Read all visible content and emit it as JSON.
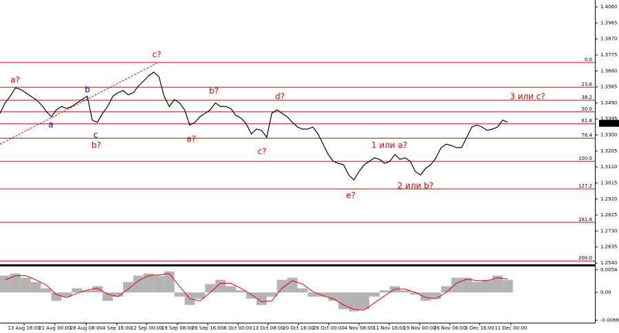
{
  "chart_data": [
    {
      "type": "line",
      "color": "#000000",
      "x": [
        0,
        1,
        2,
        3,
        4,
        5,
        6,
        7,
        8,
        9,
        10,
        11,
        12,
        13,
        14,
        15,
        16,
        17,
        18,
        19,
        20,
        21,
        22,
        23,
        24,
        25,
        26,
        27,
        28,
        29,
        30,
        31,
        32,
        33,
        34,
        35,
        36,
        37,
        38,
        39,
        40,
        41,
        42,
        43,
        44,
        45,
        46,
        47,
        48,
        49,
        50,
        51,
        52,
        53,
        54,
        55,
        56,
        57,
        58,
        59,
        60,
        61,
        62,
        63,
        64,
        65,
        66,
        67,
        68,
        69,
        70,
        71,
        72,
        73,
        74,
        75,
        76,
        77,
        78,
        79,
        80,
        81,
        82,
        83,
        84,
        85,
        86,
        87,
        88,
        89,
        90,
        91,
        92,
        93,
        94,
        95,
        96,
        97,
        98,
        99
      ],
      "values": [
        1.3428,
        1.349,
        1.353,
        1.3579,
        1.3571,
        1.3551,
        1.353,
        1.351,
        1.3481,
        1.3441,
        1.3408,
        1.3449,
        1.3469,
        1.3457,
        1.3469,
        1.349,
        1.351,
        1.353,
        1.3388,
        1.3375,
        1.3428,
        1.3469,
        1.353,
        1.3551,
        1.3563,
        1.3538,
        1.3551,
        1.3591,
        1.362,
        1.3652,
        1.3673,
        1.3644,
        1.353,
        1.3469,
        1.351,
        1.349,
        1.3449,
        1.3359,
        1.3375,
        1.3408,
        1.3428,
        1.3449,
        1.349,
        1.3469,
        1.3469,
        1.3457,
        1.3416,
        1.34,
        1.3367,
        1.3306,
        1.3335,
        1.3327,
        1.3286,
        1.3428,
        1.3449,
        1.3428,
        1.3408,
        1.3375,
        1.3347,
        1.3335,
        1.3335,
        1.3347,
        1.3306,
        1.3245,
        1.3184,
        1.3143,
        1.3131,
        1.3123,
        1.3062,
        1.3033,
        1.3082,
        1.3123,
        1.3143,
        1.3164,
        1.3155,
        1.3131,
        1.3143,
        1.3184,
        1.3155,
        1.3164,
        1.3143,
        1.3082,
        1.3062,
        1.3102,
        1.3123,
        1.3164,
        1.3225,
        1.3245,
        1.3237,
        1.3225,
        1.3225,
        1.3286,
        1.3347,
        1.3359,
        1.3347,
        1.3327,
        1.3335,
        1.3347,
        1.3388,
        1.3375
      ],
      "xlim": [
        0,
        116
      ],
      "xticks": [
        {
          "value": 4.7,
          "label": "13 Aug 16:00"
        },
        {
          "value": 10.7,
          "label": "21 Aug 00:00"
        },
        {
          "value": 16.8,
          "label": "28 Aug 08:00"
        },
        {
          "value": 22.8,
          "label": "4 Sep 16:00"
        },
        {
          "value": 28.6,
          "label": "12 Sep 00:00"
        },
        {
          "value": 34.6,
          "label": "19 Sep 08:00"
        },
        {
          "value": 40.5,
          "label": "26 Sep 16:00"
        },
        {
          "value": 46.4,
          "label": "6 Oct 00:00"
        },
        {
          "value": 52.3,
          "label": "13 Oct 08:00"
        },
        {
          "value": 58.2,
          "label": "20 Oct 16:00"
        },
        {
          "value": 64.1,
          "label": "28 Oct 00:00"
        },
        {
          "value": 70.0,
          "label": "4 Nov 08:00"
        },
        {
          "value": 75.9,
          "label": "11 Nov 16:00"
        },
        {
          "value": 81.8,
          "label": "19 Nov 00:00"
        },
        {
          "value": 87.7,
          "label": "26 Nov 08:00"
        },
        {
          "value": 93.5,
          "label": "3 Dec 16:00"
        },
        {
          "value": 99.6,
          "label": "11 Dec 00:00"
        }
      ],
      "ylim": [
        1.2532,
        1.4101
      ],
      "yticks": [
        {
          "value": 1.406,
          "label": "1.4060"
        },
        {
          "value": 1.3965,
          "label": "1.3965"
        },
        {
          "value": 1.387,
          "label": "1.3870"
        },
        {
          "value": 1.3775,
          "label": "1.3775"
        },
        {
          "value": 1.368,
          "label": "1.3680"
        },
        {
          "value": 1.3585,
          "label": "1.3585"
        },
        {
          "value": 1.349,
          "label": "1.3490"
        },
        {
          "value": 1.3395,
          "label": "1.3395"
        },
        {
          "value": 1.33,
          "label": "1.3300"
        },
        {
          "value": 1.3205,
          "label": "1.3205"
        },
        {
          "value": 1.311,
          "label": "1.3110"
        },
        {
          "value": 1.3015,
          "label": "1.3015"
        },
        {
          "value": 1.292,
          "label": "1.2920"
        },
        {
          "value": 1.2825,
          "label": "1.2825"
        },
        {
          "value": 1.273,
          "label": "1.2730"
        },
        {
          "value": 1.2635,
          "label": "1.2635"
        },
        {
          "value": 1.254,
          "label": "1.2540"
        }
      ],
      "current_price": {
        "value": 1.3369,
        "label": "1.3369"
      },
      "fib_color": "#c00000",
      "fib_levels": [
        {
          "level": "0.0",
          "price": 1.373
        },
        {
          "level": "23.6",
          "price": 1.3583
        },
        {
          "level": "38.2",
          "price": 1.3506
        },
        {
          "level": "50.0",
          "price": 1.3437
        },
        {
          "level": "61.8",
          "price": 1.3367
        },
        {
          "level": "76.4",
          "price": 1.3281
        },
        {
          "level": "100.0",
          "price": 1.3143
        },
        {
          "level": "127.2",
          "price": 1.298
        },
        {
          "level": "161.8",
          "price": 1.2781
        },
        {
          "level": "200.0",
          "price": 1.2552
        }
      ],
      "annotations": [
        {
          "text": "a?",
          "color": "#e00000"
        },
        {
          "text": "b?",
          "color": "#e00000"
        },
        {
          "text": "c?",
          "color": "#e00000"
        },
        {
          "text": "a?",
          "color": "#e00000"
        },
        {
          "text": "b?",
          "color": "#e00000"
        },
        {
          "text": "c?",
          "color": "#e00000"
        },
        {
          "text": "d?",
          "color": "#e00000"
        },
        {
          "text": "e?",
          "color": "#e00000"
        },
        {
          "text": "1 или a?",
          "color": "#e00000"
        },
        {
          "text": "2 или b?",
          "color": "#e00000"
        },
        {
          "text": "3 или c?",
          "color": "#e00000"
        },
        {
          "text": "b",
          "color": "#0000cc"
        },
        {
          "text": "a",
          "color": "#0000cc"
        },
        {
          "text": "c",
          "color": "#0000cc"
        }
      ]
    },
    {
      "type": "bar",
      "x": [
        0,
        2,
        4,
        6,
        8,
        10,
        12,
        14,
        16,
        18,
        20,
        22,
        24,
        26,
        28,
        30,
        32,
        34,
        36,
        38,
        40,
        42,
        44,
        46,
        48,
        50,
        52,
        54,
        56,
        58,
        60,
        62,
        64,
        66,
        68,
        70,
        72,
        74,
        76,
        78,
        80,
        82,
        84,
        86,
        88,
        90,
        92,
        94,
        96,
        98
      ],
      "histogram": {
        "color": "#b4b4b4",
        "values": [
          0.004,
          0.0045,
          0.0035,
          0.0025,
          0.001,
          -0.002,
          -0.001,
          0.001,
          0.0005,
          0.0015,
          -0.002,
          -0.001,
          0.0025,
          0.004,
          0.0045,
          0.004,
          0.005,
          -0.001,
          -0.003,
          -0.0015,
          0.002,
          0.003,
          0.0015,
          0.0005,
          -0.0015,
          -0.003,
          -0.001,
          0.003,
          0.0035,
          0.001,
          -0.001,
          -0.001,
          -0.002,
          -0.004,
          -0.0045,
          -0.004,
          -0.001,
          0.0005,
          0.0015,
          0.0005,
          -0.0005,
          -0.002,
          -0.0015,
          0.0015,
          0.0035,
          0.0035,
          0.0025,
          0.003,
          0.004,
          0.003
        ]
      },
      "signal": {
        "color": "#e00000",
        "values": [
          0.003,
          0.004,
          0.004,
          0.003,
          0.0018,
          -0.0005,
          -0.0012,
          -0.0002,
          0.0006,
          0.001,
          -0.0004,
          -0.001,
          0.0008,
          0.0028,
          0.004,
          0.0042,
          0.0045,
          0.0015,
          -0.0015,
          -0.002,
          0.0,
          0.0022,
          0.0022,
          0.001,
          -0.0005,
          -0.0022,
          -0.002,
          0.001,
          0.0028,
          0.002,
          0.0002,
          -0.0008,
          -0.0015,
          -0.003,
          -0.004,
          -0.0042,
          -0.0025,
          -0.0008,
          0.0008,
          0.0008,
          0.0,
          -0.0012,
          -0.0015,
          0.0,
          0.0022,
          0.0032,
          0.0028,
          0.0028,
          0.0035,
          0.0032
        ]
      },
      "xlim": [
        0,
        116
      ],
      "ylim": [
        -0.0072,
        0.0062
      ],
      "yticks": [
        {
          "value": 0.0054,
          "label": "0.0054"
        },
        {
          "value": 0,
          "label": "0.00"
        },
        {
          "value": -0.0066,
          "label": "-0.0066"
        }
      ]
    }
  ]
}
